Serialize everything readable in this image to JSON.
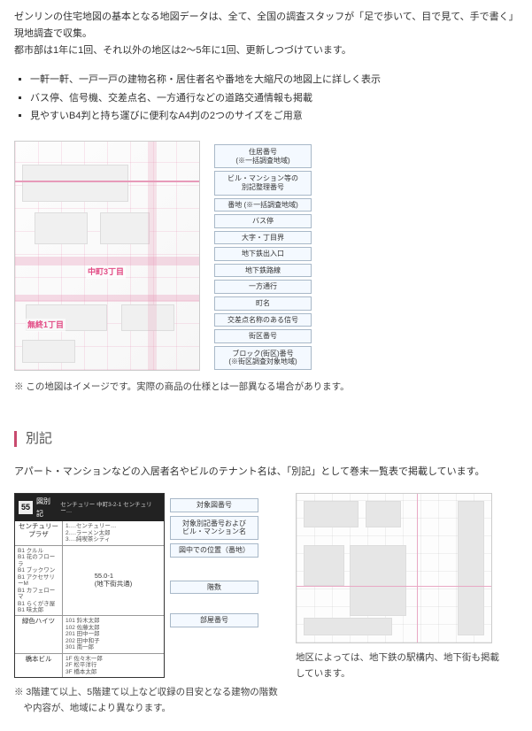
{
  "intro": {
    "line1": "ゼンリンの住宅地図の基本となる地図データは、全て、全国の調査スタッフが「足で歩いて、目で見て、手で書く」現地調査で収集。",
    "line2": "都市部は1年に1回、それ以外の地区は2～5年に1回、更新しつづけています。"
  },
  "features": [
    "一軒一軒、一戸一戸の建物名称・居住者名や番地を大縮尺の地図上に詳しく表示",
    "バス停、信号機、交差点名、一方通行などの道路交通情報も掲載",
    "見やすいB4判と持ち運びに便利なA4判の2つのサイズをご用意"
  ],
  "map": {
    "addr1": "中町3丁目",
    "addr2": "無終1丁目",
    "legend": [
      "住居番号\n(※一括調査地域)",
      "ビル・マンション等の\n別記整理番号",
      "番地  (※一括調査地域)",
      "バス停",
      "大字・丁目界",
      "地下鉄出入口",
      "地下鉄路線",
      "一方通行",
      "町名",
      "交差点名称のある信号",
      "街区番号",
      "ブロック(街区)番号\n(※街区調査対象地域)"
    ],
    "note": "※ この地図はイメージです。実際の商品の仕様とは一部異なる場合があります。"
  },
  "section_bekki": {
    "title": "別記",
    "intro": "アパート・マンションなどの入居者名やビルのテナント名は、「別記」として巻末一覧表で掲載しています。",
    "table": {
      "header_num": "55",
      "header_text": "図別記",
      "header_sub": "センチュリー  中町3-2-1  センチュリー…",
      "building_name": "センチュリー\nプラザ",
      "building_r1": "1….センチュリー…\n2….ラーメン太郎\n3….純喫茶シティ",
      "mid_block_l": "55.0-1\n(地下街共通)",
      "mid_block_l_items": "B1 クルル\nB1 花のフローラ\nB1 ブックワン\nB1 アクセサリーM\nB1 カフェローマ\nB1 らくがき屋\nB1 味太郎",
      "building2": "緑色ハイツ",
      "building2_r": "101 鈴木太郎\n102 佐藤太郎\n201 田中一郎\n202 田中和子\n301 南一郎",
      "building3": "橋本ビル",
      "building3_r": "1F 佐々木一郎\n2F 松平洋行\n3F 橋本太郎"
    },
    "legend2": [
      "対象図番号",
      "対象別記番号および\nビル・マンション名",
      "図中での位置（番地）",
      "階数",
      "部屋番号"
    ],
    "note_left": "※ 3階建て以上、5階建て以上など収録の目安となる建物の階数や内容が、地域により異なります。",
    "note_right": "地区によっては、地下鉄の駅構内、地下街も掲載しています。"
  },
  "colors": {
    "accent_bar": "#c84a6e",
    "legend_box_bg": "#f4f9ff",
    "legend_box_border": "#a8b8c8",
    "pink": "#e24a84"
  }
}
